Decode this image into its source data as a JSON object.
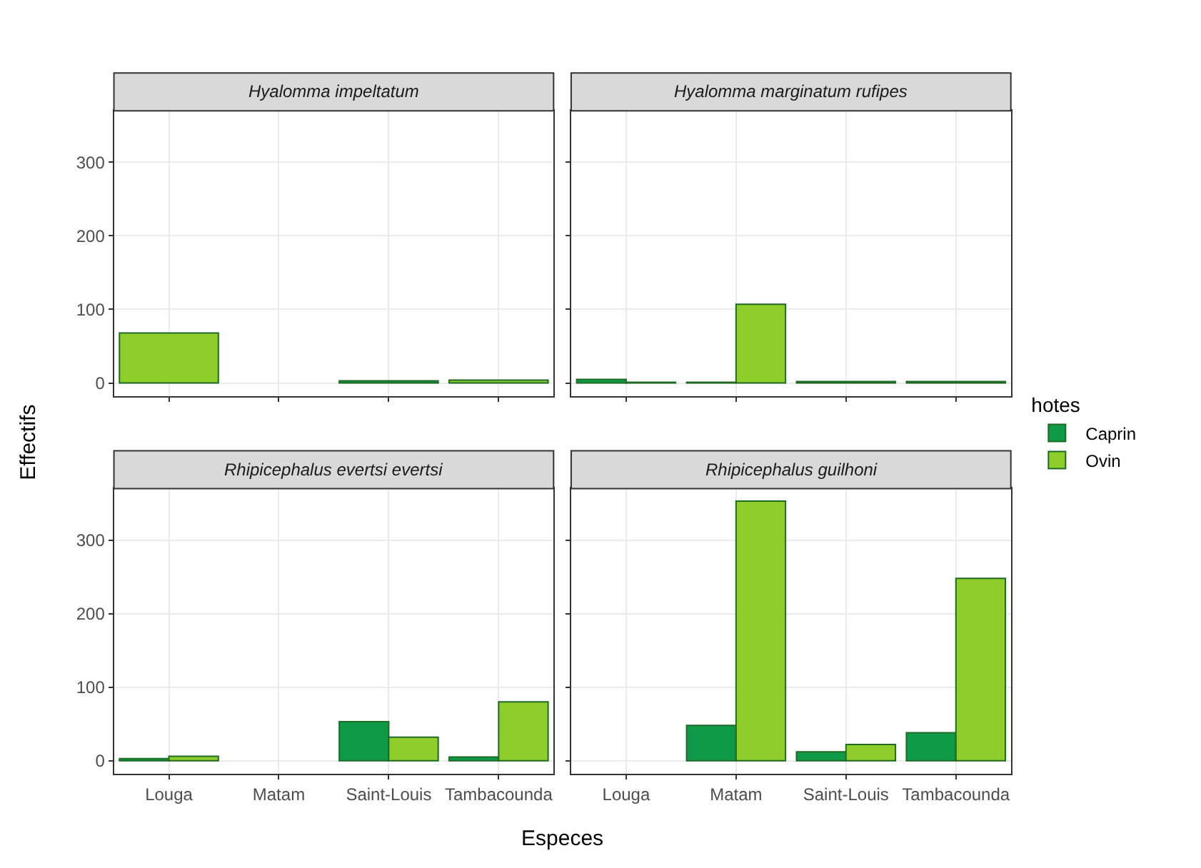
{
  "chart_data": [
    {
      "type": "bar",
      "title": "Hyalomma impeltatum",
      "ylabel": "Effectifs",
      "categories": [
        "Louga",
        "Matam",
        "Saint-Louis",
        "Tambacounda"
      ],
      "ylim": [
        -18,
        370
      ],
      "yticks": [
        0,
        100,
        200,
        300
      ],
      "grid": true,
      "tick_labels": "y",
      "legend": "right",
      "series": [
        {
          "name": "Caprin",
          "color": "#0f9a47",
          "values": [
            null,
            null,
            3,
            null
          ]
        },
        {
          "name": "Ovin",
          "color": "#8fcd2b",
          "values": [
            68,
            null,
            null,
            4
          ]
        }
      ]
    },
    {
      "type": "bar",
      "title": "Hyalomma marginatum rufipes",
      "legend_title": "hotes",
      "categories": [
        "Louga",
        "Matam",
        "Saint-Louis",
        "Tambacounda"
      ],
      "ylim": [
        -18,
        370
      ],
      "yticks": [
        0,
        100,
        200,
        300
      ],
      "grid": true,
      "tick_labels": false,
      "legend": "right",
      "series": [
        {
          "color": "#0f9a47",
          "values": [
            5,
            1,
            2,
            2
          ]
        },
        {
          "color": "#8fcd2b",
          "values": [
            1,
            107,
            null,
            null
          ]
        }
      ]
    },
    {
      "type": "bar",
      "title": "Rhipicephalus evertsi evertsi",
      "xlabel": "Especes",
      "categories": [
        "Louga",
        "Matam",
        "Saint-Louis",
        "Tambacounda"
      ],
      "ylim": [
        -18,
        370
      ],
      "yticks": [
        0,
        100,
        200,
        300
      ],
      "grid": true,
      "legend": "right",
      "series": [
        {
          "color": "#0f9a47",
          "values": [
            3,
            null,
            53,
            5
          ]
        },
        {
          "color": "#8fcd2b",
          "values": [
            6,
            null,
            32,
            80
          ]
        }
      ]
    },
    {
      "type": "bar",
      "title": "Rhipicephalus guilhoni",
      "categories": [
        "Louga",
        "Matam",
        "Saint-Louis",
        "Tambacounda"
      ],
      "ylim": [
        -18,
        370
      ],
      "yticks": [
        0,
        100,
        200,
        300
      ],
      "grid": true,
      "tick_labels": "x",
      "legend": "right",
      "series": [
        {
          "color": "#0f9a47",
          "values": [
            null,
            48,
            12,
            38
          ]
        },
        {
          "color": "#8fcd2b",
          "values": [
            null,
            353,
            22,
            248
          ]
        }
      ]
    }
  ]
}
